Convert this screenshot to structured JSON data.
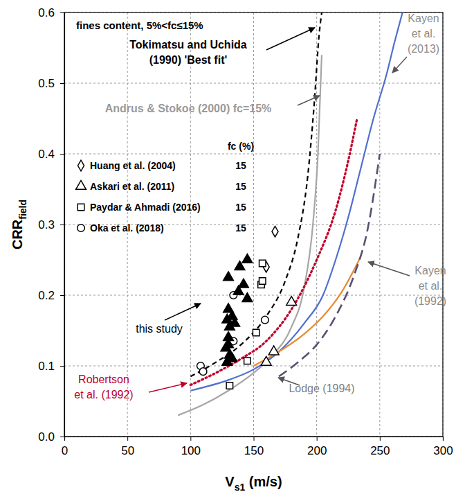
{
  "chart_data": {
    "type": "scatter",
    "title": "fines content, 5%<fc≤15%",
    "x_label": "Vs1 (m/s)",
    "y_label": "CRRfield",
    "legend_header": "fc (%)",
    "xlim": [
      0,
      300
    ],
    "xticks": [
      0,
      50,
      100,
      150,
      200,
      250,
      300
    ],
    "ylim": [
      0,
      0.6
    ],
    "yticks": [
      {
        "value": 0,
        "label": "0.0"
      },
      0.1,
      0.2,
      0.3,
      0.4,
      0.5,
      0.6
    ],
    "grid": true,
    "legend": "upper left",
    "series": [
      {
        "name": "Tokimatsu and Uchida (1990) 'Best fit'",
        "type": "line",
        "color": "#000000",
        "line_style": "dashed",
        "x": [
          100,
          120,
          140,
          160,
          175,
          185,
          193,
          198,
          202,
          204
        ],
        "values": [
          0.085,
          0.105,
          0.13,
          0.17,
          0.22,
          0.28,
          0.37,
          0.47,
          0.57,
          0.6
        ]
      },
      {
        "name": "Andrus & Stokoe (2000) fc=15%",
        "type": "line",
        "color": "#a6a6a6",
        "line_style": "solid",
        "x": [
          90,
          110,
          130,
          150,
          165,
          180,
          190,
          197,
          201,
          204
        ],
        "values": [
          0.03,
          0.045,
          0.065,
          0.09,
          0.115,
          0.155,
          0.21,
          0.3,
          0.4,
          0.54
        ]
      },
      {
        "name": "Robertson et al. (1992)",
        "type": "line",
        "color": "#c0002a",
        "line_style": "dotted",
        "x": [
          100,
          120,
          140,
          160,
          180,
          200,
          215,
          225,
          232
        ],
        "values": [
          0.073,
          0.09,
          0.11,
          0.135,
          0.18,
          0.25,
          0.32,
          0.39,
          0.45
        ]
      },
      {
        "name": "Kayen et al. (2013)",
        "type": "line",
        "color": "#4f6fcf",
        "line_style": "solid",
        "x": [
          100,
          130,
          150,
          170,
          190,
          205,
          215,
          225,
          235,
          245,
          255,
          262,
          268
        ],
        "values": [
          0.065,
          0.08,
          0.095,
          0.12,
          0.16,
          0.2,
          0.25,
          0.31,
          0.38,
          0.45,
          0.51,
          0.56,
          0.6
        ]
      },
      {
        "name": "Kayen et al. (1992)",
        "type": "line",
        "color": "#e8892e",
        "line_style": "solid",
        "x": [
          150,
          170,
          190,
          205,
          220,
          235
        ],
        "values": [
          0.1,
          0.12,
          0.145,
          0.17,
          0.205,
          0.255
        ]
      },
      {
        "name": "Lodge (1994)",
        "type": "line",
        "color": "#5b4f72",
        "line_style": "longdash",
        "x": [
          170,
          185,
          200,
          215,
          230,
          240,
          250
        ],
        "values": [
          0.085,
          0.105,
          0.13,
          0.17,
          0.23,
          0.29,
          0.4
        ]
      },
      {
        "name": "Huang et al. (2004)",
        "type": "scatter",
        "color": "#000000",
        "marker": "diamond-open",
        "fines_content": 15,
        "x": [
          167,
          160
        ],
        "values": [
          0.29,
          0.24
        ]
      },
      {
        "name": "Askari et al. (2011)",
        "type": "scatter",
        "color": "#000000",
        "marker": "triangle-open",
        "fines_content": 15,
        "x": [
          180,
          166,
          160
        ],
        "values": [
          0.19,
          0.12,
          0.105
        ]
      },
      {
        "name": "Paydar & Ahmadi (2016)",
        "type": "scatter",
        "color": "#000000",
        "marker": "square-open",
        "fines_content": 15,
        "x": [
          131,
          145,
          152,
          156,
          157,
          157
        ],
        "values": [
          0.072,
          0.107,
          0.147,
          0.215,
          0.22,
          0.245
        ]
      },
      {
        "name": "Oka et al. (2018)",
        "type": "scatter",
        "color": "#000000",
        "marker": "circle-open",
        "fines_content": 15,
        "x": [
          108,
          110,
          134,
          134,
          159
        ],
        "values": [
          0.1,
          0.092,
          0.2,
          0.135,
          0.165
        ]
      },
      {
        "name": "this study",
        "type": "scatter",
        "color": "#000000",
        "marker": "triangle",
        "x": [
          130,
          139,
          145,
          142,
          138,
          145,
          130,
          133,
          129,
          131,
          135,
          130,
          128,
          131,
          129,
          133,
          130
        ],
        "values": [
          0.225,
          0.24,
          0.25,
          0.215,
          0.205,
          0.195,
          0.18,
          0.17,
          0.165,
          0.155,
          0.16,
          0.14,
          0.125,
          0.115,
          0.105,
          0.11,
          0.13
        ]
      }
    ]
  }
}
